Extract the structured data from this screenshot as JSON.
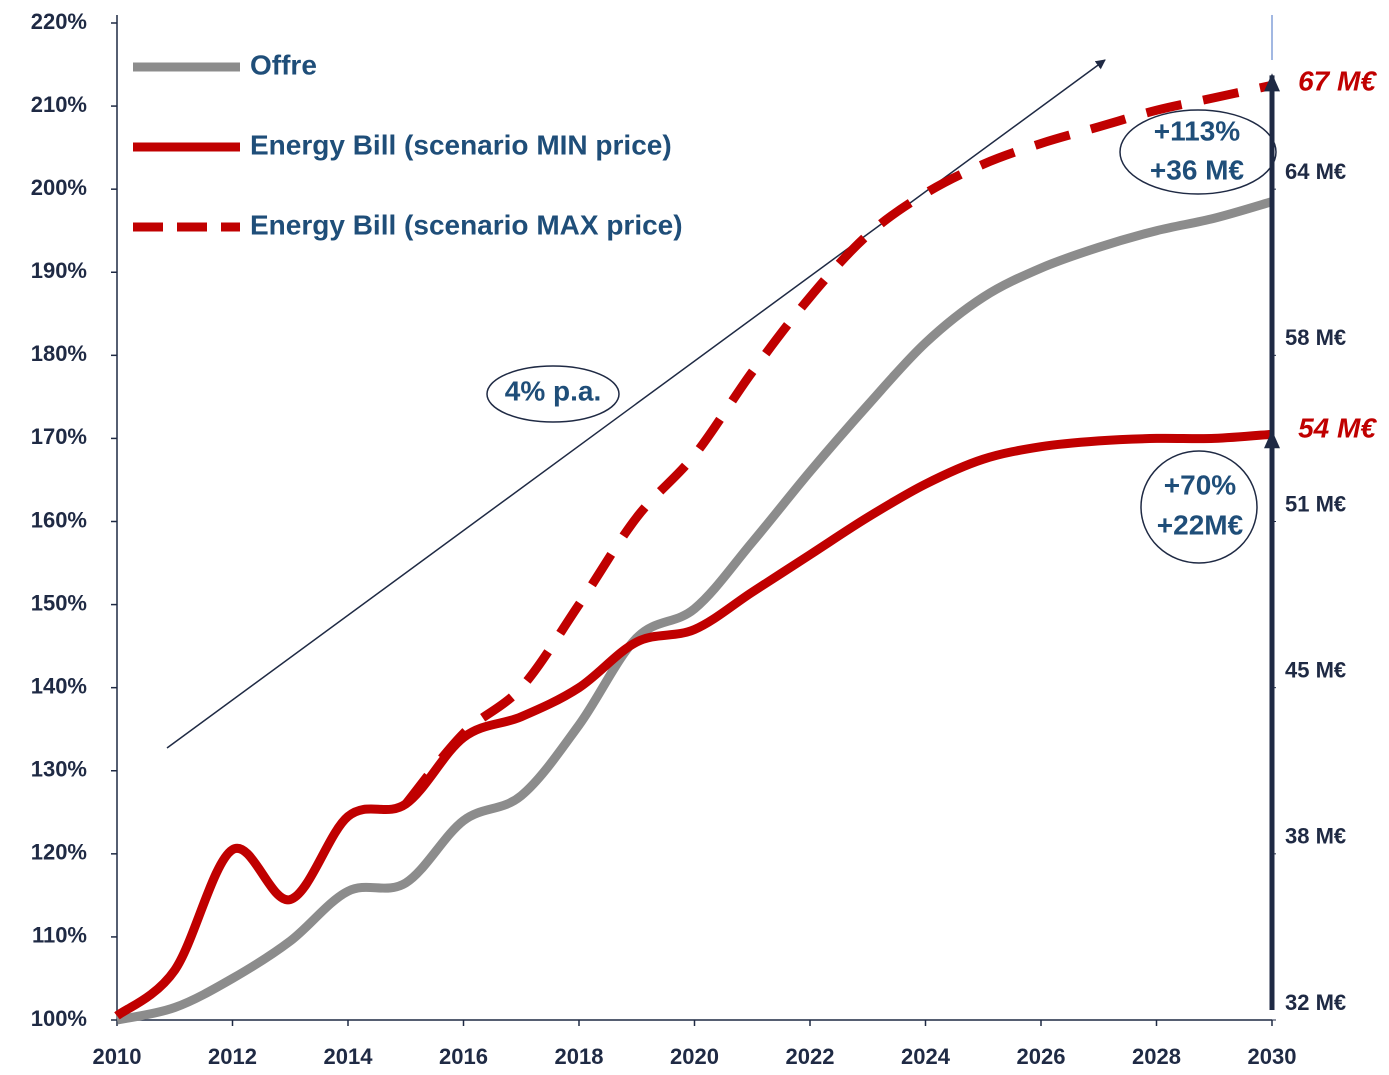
{
  "chart_data": {
    "type": "line",
    "x": [
      2010,
      2011,
      2012,
      2013,
      2014,
      2015,
      2016,
      2017,
      2018,
      2019,
      2020,
      2021,
      2022,
      2023,
      2024,
      2025,
      2026,
      2027,
      2028,
      2029,
      2030
    ],
    "series": [
      {
        "name": "Offre",
        "color": "#8c8c8c",
        "style": "solid",
        "values": [
          100,
          101.5,
          105,
          109.5,
          115.5,
          116.5,
          124,
          127,
          135.5,
          146,
          149.5,
          157.5,
          166,
          174,
          181.5,
          187,
          190.5,
          193,
          195,
          196.5,
          198.5
        ]
      },
      {
        "name": "Energy Bill (scenario MIN price)",
        "color": "#c00000",
        "style": "solid",
        "values": [
          100.5,
          106,
          120.5,
          114.5,
          124.5,
          126,
          134,
          136.5,
          140,
          145.5,
          147,
          151.5,
          156,
          160.5,
          164.5,
          167.5,
          169,
          169.7,
          170,
          170,
          170.5
        ]
      },
      {
        "name": "Energy Bill (scenario MAX price)",
        "color": "#c00000",
        "style": "dashed",
        "values": [
          null,
          null,
          null,
          null,
          null,
          126,
          134.5,
          140,
          150,
          160.5,
          168,
          178,
          187,
          194.5,
          199.5,
          203,
          205.5,
          207.5,
          209.5,
          211,
          212.5
        ]
      }
    ],
    "xlim": [
      2010,
      2030
    ],
    "xticks": [
      2010,
      2012,
      2014,
      2016,
      2018,
      2020,
      2022,
      2024,
      2026,
      2028,
      2030
    ],
    "ylim": [
      100,
      220
    ],
    "yticks": [
      {
        "value": 100,
        "label": "100%"
      },
      {
        "value": 110,
        "label": "110%"
      },
      {
        "value": 120,
        "label": "120%"
      },
      {
        "value": 130,
        "label": "130%"
      },
      {
        "value": 140,
        "label": "140%"
      },
      {
        "value": 150,
        "label": "150%"
      },
      {
        "value": 160,
        "label": "160%"
      },
      {
        "value": 170,
        "label": "170%"
      },
      {
        "value": 180,
        "label": "180%"
      },
      {
        "value": 190,
        "label": "190%"
      },
      {
        "value": 200,
        "label": "200%"
      },
      {
        "value": 210,
        "label": "210%"
      },
      {
        "value": 220,
        "label": "220%"
      }
    ],
    "y2lim": [
      32,
      70.4
    ],
    "y2ticks": [
      {
        "value": 32,
        "label": "32 M€"
      },
      {
        "value": 38.4,
        "label": "38 M€"
      },
      {
        "value": 44.8,
        "label": "45 M€"
      },
      {
        "value": 51.2,
        "label": "51 M€"
      },
      {
        "value": 57.6,
        "label": "58 M€"
      },
      {
        "value": 64,
        "label": "64 M€"
      }
    ],
    "legend": "top-left",
    "grid": false,
    "annotations": [
      "4% p.a.",
      "+113%",
      "+36 M€",
      "+70%",
      "+22M€",
      "67 M€",
      "54 M€"
    ]
  }
}
